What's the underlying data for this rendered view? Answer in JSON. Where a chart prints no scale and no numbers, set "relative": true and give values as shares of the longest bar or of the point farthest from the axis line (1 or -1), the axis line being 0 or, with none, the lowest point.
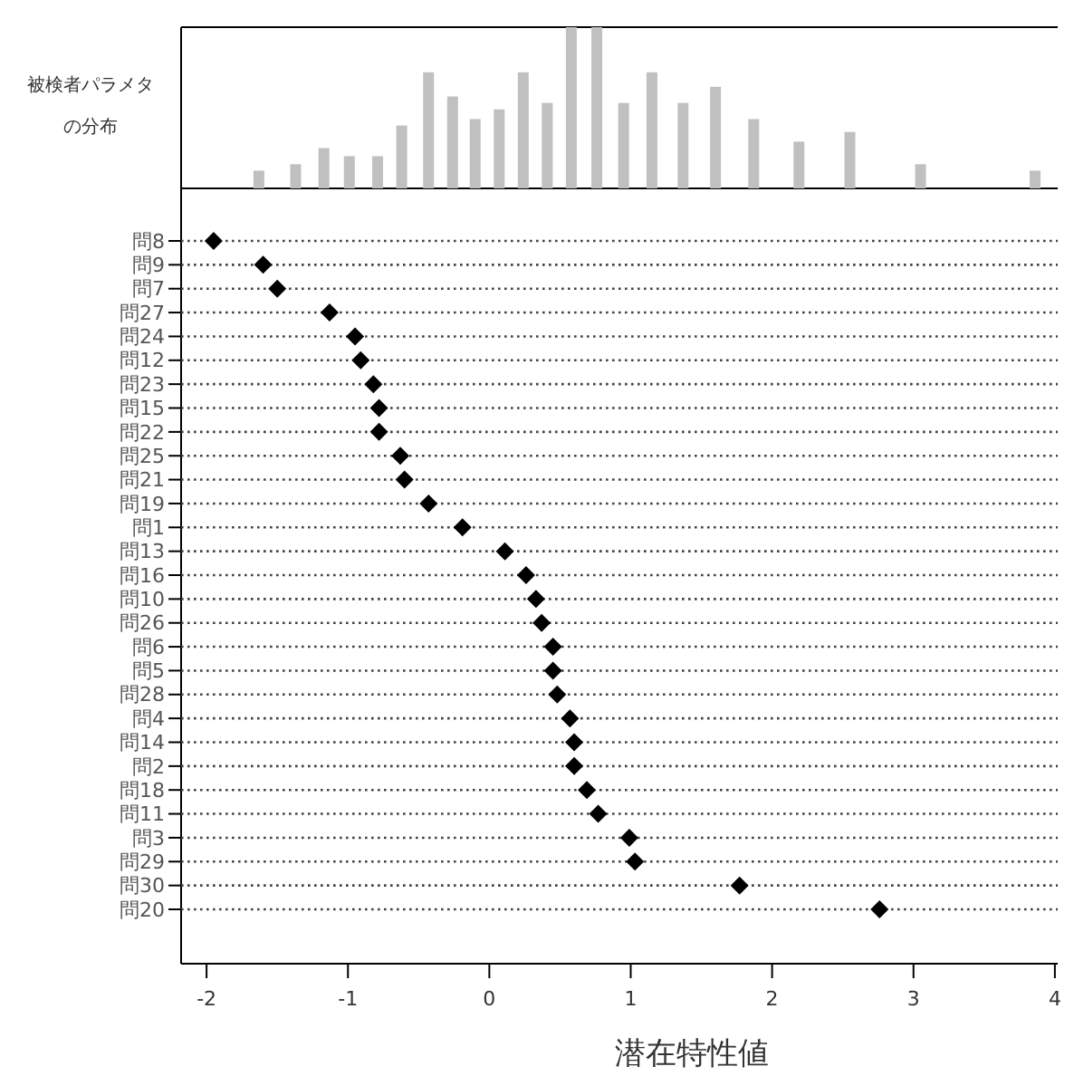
{
  "chart_data": [
    {
      "type": "bar",
      "ylabel": "被検者パラメタの分布",
      "relative": true,
      "xlim": [
        -2.18,
        4.02
      ],
      "color": "#c0c0c0",
      "x": [
        -1.63,
        -1.37,
        -1.17,
        -0.99,
        -0.79,
        -0.62,
        -0.43,
        -0.26,
        -0.1,
        0.07,
        0.24,
        0.41,
        0.58,
        0.76,
        0.95,
        1.15,
        1.37,
        1.6,
        1.87,
        2.19,
        2.55,
        3.05,
        3.86
      ],
      "values": [
        0.11,
        0.15,
        0.25,
        0.2,
        0.2,
        0.39,
        0.72,
        0.57,
        0.43,
        0.49,
        0.72,
        0.53,
        1,
        1,
        0.53,
        0.72,
        0.53,
        0.63,
        0.43,
        0.29,
        0.35,
        0.15,
        0.11
      ]
    },
    {
      "type": "scatter",
      "orientation": "horizontal",
      "xlabel": "潜在特性値",
      "xlim": [
        -2.18,
        4.02
      ],
      "xticks": [
        -2,
        -1,
        0,
        1,
        2,
        3,
        4
      ],
      "grid": "y",
      "marker": "diamond",
      "color": "#000000",
      "categories": [
        "問8",
        "問9",
        "問7",
        "問27",
        "問24",
        "問12",
        "問23",
        "問15",
        "問22",
        "問25",
        "問21",
        "問19",
        "問1",
        "問13",
        "問16",
        "問10",
        "問26",
        "問6",
        "問5",
        "問28",
        "問4",
        "問14",
        "問2",
        "問18",
        "問11",
        "問3",
        "問29",
        "問30",
        "問20"
      ],
      "values": [
        -1.95,
        -1.6,
        -1.5,
        -1.13,
        -0.95,
        -0.91,
        -0.82,
        -0.78,
        -0.78,
        -0.63,
        -0.6,
        -0.43,
        -0.19,
        0.11,
        0.26,
        0.33,
        0.37,
        0.45,
        0.45,
        0.48,
        0.57,
        0.6,
        0.6,
        0.69,
        0.77,
        0.99,
        1.03,
        1.77,
        2.76
      ]
    }
  ]
}
